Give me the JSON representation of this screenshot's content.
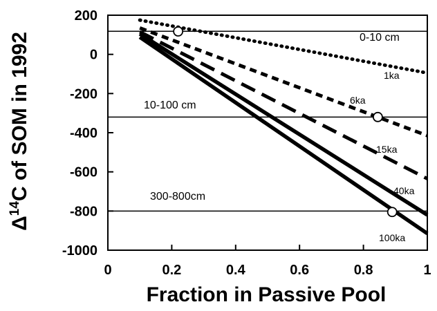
{
  "chart_data": {
    "type": "line",
    "xlabel": "Fraction in Passive Pool",
    "ylabel_parts": [
      "Δ",
      "14",
      "C  of SOM in 1992"
    ],
    "xlim": [
      0,
      1
    ],
    "ylim": [
      -1000,
      200
    ],
    "x_ticks": [
      0,
      0.2,
      0.4,
      0.6,
      0.8,
      1
    ],
    "x_tick_labels": [
      "0",
      "0.2",
      "0.4",
      "0.6",
      "0.8",
      "1"
    ],
    "y_ticks": [
      200,
      0,
      -200,
      -400,
      -600,
      -800,
      -1000
    ],
    "y_tick_labels": [
      "200",
      "0",
      "-200",
      "-400",
      "-600",
      "-800",
      "-1000"
    ],
    "grid": false,
    "legend": "none",
    "series": [
      {
        "name": "1ka",
        "style": "dotted",
        "x": [
          0.1,
          1.0
        ],
        "y": [
          175,
          -95
        ]
      },
      {
        "name": "6ka",
        "style": "short-dash",
        "x": [
          0.1,
          1.0
        ],
        "y": [
          135,
          -415
        ]
      },
      {
        "name": "15ka",
        "style": "long-dash",
        "x": [
          0.1,
          1.0
        ],
        "y": [
          115,
          -635
        ]
      },
      {
        "name": "40ka",
        "style": "solid-thick",
        "x": [
          0.1,
          1.0
        ],
        "y": [
          105,
          -820
        ]
      },
      {
        "name": "100ka",
        "style": "solid-thick",
        "x": [
          0.1,
          1.0
        ],
        "y": [
          88,
          -915
        ]
      }
    ],
    "reference_lines": [
      {
        "label": "0-10 cm",
        "y": 118
      },
      {
        "label": "10-100 cm",
        "y": -320
      },
      {
        "label": "300-800cm",
        "y": -800
      }
    ],
    "markers": [
      {
        "x": 0.22,
        "y": 117
      },
      {
        "x": 0.845,
        "y": -320
      },
      {
        "x": 0.89,
        "y": -805
      }
    ]
  }
}
